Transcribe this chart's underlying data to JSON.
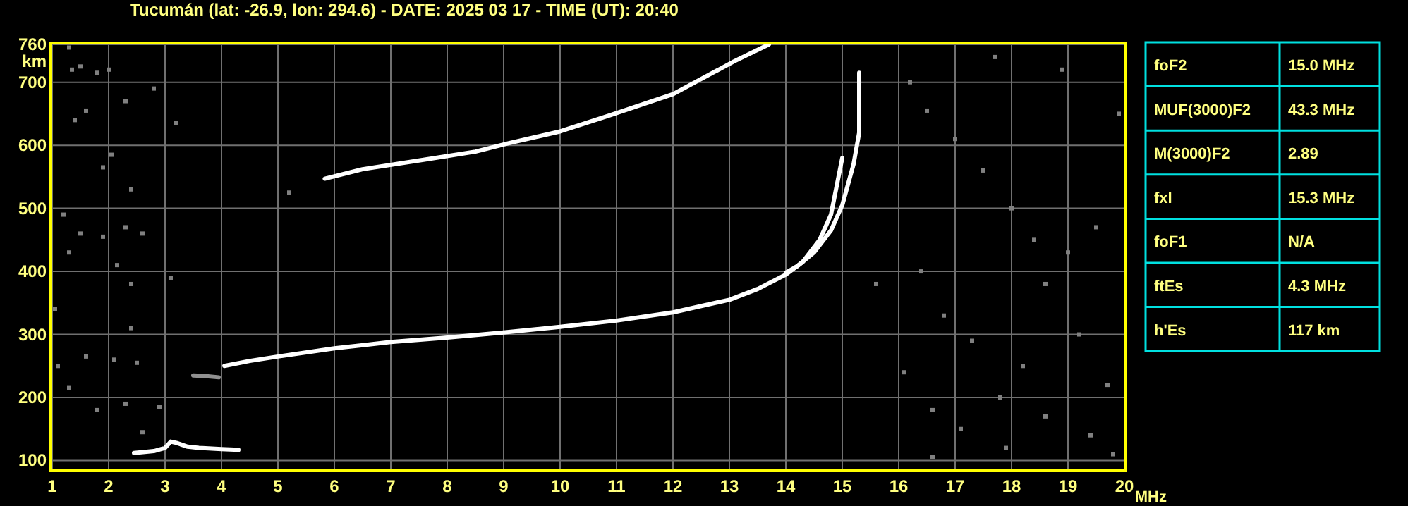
{
  "chart_data": [
    {
      "type": "line",
      "title": "Tucumán (lat: -26.9, lon: 294.6) - DATE: 2025 03 17 - TIME (UT): 20:40",
      "xlabel": "MHz",
      "ylabel": "km",
      "xlim": [
        1,
        20
      ],
      "xticks": [
        1,
        2,
        3,
        4,
        5,
        6,
        7,
        8,
        9,
        10,
        11,
        12,
        13,
        14,
        15,
        16,
        17,
        18,
        19,
        20
      ],
      "ylim": [
        86,
        760
      ],
      "yticks": [
        100,
        200,
        300,
        400,
        500,
        600,
        700,
        760
      ],
      "grid": true,
      "series": [
        {
          "color": "#ffffff",
          "x": [
            4.05,
            4.5,
            5,
            6,
            7,
            8,
            9,
            10,
            11,
            12,
            13,
            13.5,
            14,
            14.3,
            14.6,
            14.8,
            15.0
          ],
          "values": [
            250,
            258,
            265,
            278,
            288,
            295,
            303,
            312,
            322,
            335,
            355,
            372,
            395,
            415,
            450,
            490,
            580
          ]
        },
        {
          "color": "#ffffff",
          "x": [
            14,
            14.2,
            14.5,
            14.8,
            15.0,
            15.2,
            15.3,
            15.3
          ],
          "values": [
            398,
            408,
            430,
            465,
            505,
            570,
            620,
            715
          ]
        },
        {
          "color": "#ffffff",
          "x": [
            5.83,
            6.5,
            7.58,
            8.5,
            9.08,
            10,
            10.9,
            12.0,
            13.08,
            13.7
          ],
          "values": [
            547,
            562,
            577,
            590,
            603,
            622,
            648,
            681,
            733,
            760
          ]
        },
        {
          "color": "#ffffff",
          "x": [
            2.45,
            2.8,
            3.0,
            3.1,
            3.2,
            3.4,
            3.6,
            4.0,
            4.3
          ],
          "values": [
            112,
            115,
            120,
            130,
            128,
            122,
            120,
            118,
            117
          ]
        },
        {
          "color": "#909090",
          "x": [
            3.5,
            3.7,
            3.95
          ],
          "values": [
            235,
            234,
            232
          ]
        },
        {
          "type": "scatter",
          "marker": "square",
          "color": "#808080",
          "x": [
            1.3,
            1.35,
            1.5,
            1.8,
            2.0,
            1.6,
            1.4,
            2.3,
            2.8,
            3.2,
            2.05,
            1.9,
            2.4,
            1.2,
            1.5,
            1.9,
            2.3,
            2.6,
            1.3,
            2.15,
            2.4,
            1.05,
            2.4,
            1.1,
            1.6,
            2.1,
            2.5,
            1.3,
            1.8,
            2.3,
            2.6,
            2.9,
            3.1,
            5.2,
            15.6,
            16.2,
            16.5,
            17.0,
            17.5,
            18.0,
            18.4,
            19.0,
            19.5,
            16.8,
            17.3,
            18.2,
            19.2,
            19.7,
            16.1,
            16.6,
            17.1,
            18.6,
            19.4,
            16.6,
            17.9,
            19.8,
            18.9,
            17.7,
            19.9,
            16.4,
            18.6,
            17.8
          ],
          "values": [
            755,
            720,
            725,
            715,
            720,
            655,
            640,
            670,
            690,
            635,
            585,
            565,
            530,
            490,
            460,
            455,
            470,
            460,
            430,
            410,
            380,
            340,
            310,
            250,
            265,
            260,
            255,
            215,
            180,
            190,
            145,
            185,
            390,
            525,
            380,
            700,
            655,
            610,
            560,
            500,
            450,
            430,
            470,
            330,
            290,
            250,
            300,
            220,
            240,
            180,
            150,
            170,
            140,
            105,
            120,
            110,
            720,
            740,
            650,
            400,
            380,
            200
          ]
        }
      ]
    },
    {
      "type": "other",
      "categories": [
        "foF2",
        "MUF(3000)F2",
        "M(3000)F2",
        "fxI",
        "foF1",
        "ftEs",
        "h'Es"
      ],
      "value_labels": [
        "15.0 MHz",
        "43.3 MHz",
        "2.89",
        "15.3 MHz",
        "N/A",
        "4.3 MHz",
        "117 km"
      ]
    }
  ]
}
